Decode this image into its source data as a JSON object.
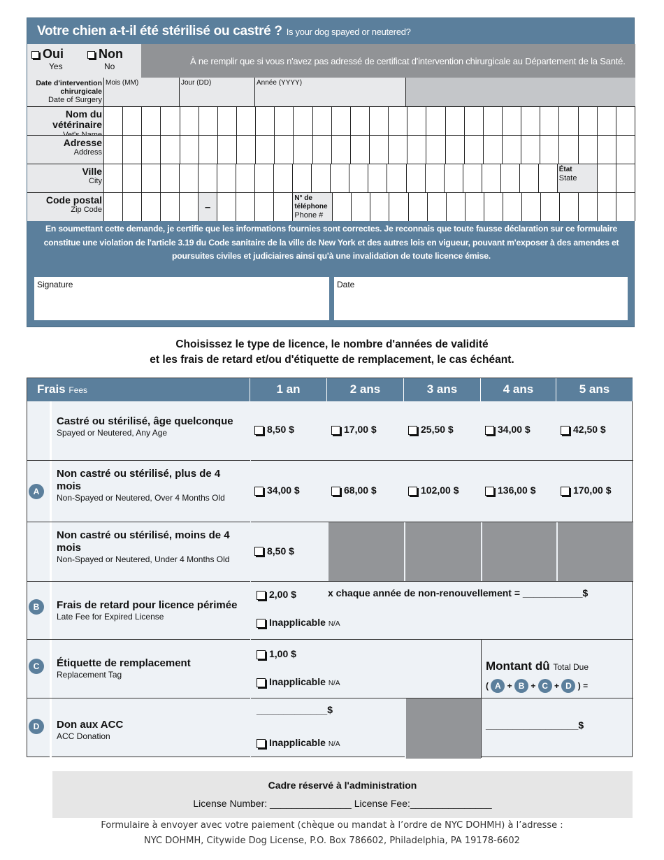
{
  "spay": {
    "title_fr": "Votre chien a-t-il été stérilisé ou castré ?",
    "title_en": "Is your dog spayed or neutered?",
    "yes_fr": "Oui",
    "yes_en": "Yes",
    "no_fr": "Non",
    "no_en": "No",
    "note": "À ne remplir que si vous n'avez pas adressé de certificat d'intervention chirurgicale au Département de la Santé.",
    "date_fr": "Date d'intervention chirurgicale",
    "date_en": "Date of Surgery",
    "month": "Mois (MM)",
    "day": "Jour (DD)",
    "year": "Année (YYYY)",
    "vet_fr": "Nom du vétérinaire",
    "vet_en": "Vet's Name",
    "addr_fr": "Adresse",
    "addr_en": "Address",
    "city_fr": "Ville",
    "city_en": "City",
    "state_fr": "État",
    "state_en": "State",
    "zip_fr": "Code postal",
    "zip_en": "Zip Code",
    "zip_dash": "–",
    "phone_fr": "N° de téléphone",
    "phone_en": "Phone #",
    "declaration": "En soumettant cette demande, je certifie que les informations fournies sont correctes. Je reconnais que toute fausse déclaration sur ce formulaire constitue une violation de l'article 3.19 du Code sanitaire de la ville de New York et des autres lois en vigueur, pouvant m'exposer à des amendes et poursuites civiles et judiciaires ainsi qu'à une invalidation de toute licence émise.",
    "signature": "Signature",
    "date": "Date"
  },
  "license_title_1": "Choisissez le type de licence, le nombre d'années de validité",
  "license_title_2": "et les frais de retard et/ou d'étiquette de remplacement, le cas échéant.",
  "fees": {
    "header_fr": "Frais",
    "header_en": "Fees",
    "years": [
      "1 an",
      "2 ans",
      "3 ans",
      "4 ans",
      "5 ans"
    ],
    "rows": [
      {
        "fr": "Castré ou stérilisé, âge quelconque",
        "en": "Spayed or Neutered, Any Age",
        "prices": [
          "8,50 $",
          "17,00 $",
          "25,50 $",
          "34,00 $",
          "42,50 $"
        ]
      },
      {
        "letter": "A",
        "fr": "Non castré ou stérilisé, plus de 4 mois",
        "en": "Non-Spayed or Neutered, Over 4 Months Old",
        "prices": [
          "34,00 $",
          "68,00 $",
          "102,00 $",
          "136,00 $",
          "170,00 $"
        ]
      },
      {
        "fr": "Non castré ou stérilisé, moins de 4 mois",
        "en": "Non-Spayed or Neutered, Under 4 Months Old",
        "prices": [
          "8,50 $"
        ]
      }
    ],
    "late": {
      "letter": "B",
      "fr": "Frais de retard pour licence périmée",
      "en": "Late Fee for Expired License",
      "price": "2,00 $",
      "mult": "x  chaque année de non-renouvellement =  ___________$"
    },
    "tag": {
      "letter": "C",
      "fr": "Étiquette de remplacement",
      "en": "Replacement Tag",
      "price": "1,00 $"
    },
    "donation": {
      "letter": "D",
      "fr": "Don aux ACC",
      "en": "ACC Donation",
      "blank": "_____________$"
    },
    "na_fr": "Inapplicable",
    "na_en": "N/A",
    "total_fr": "Montant dû",
    "total_en": "Total Due",
    "total_blank": "_________________$"
  },
  "admin": {
    "title": "Cadre réservé à l'administration",
    "license_number": "License Number: _______________",
    "license_fee": "License Fee:_______________"
  },
  "footer": {
    "line1": "Formulaire à envoyer avec votre paiement (chèque ou mandat à l’ordre de NYC DOHMH) à l’adresse :",
    "line2": "NYC DOHMH, Citywide Dog License, P.O. Box 786602, Philadelphia, PA 19178-6602"
  },
  "colors": {
    "accent": "#5b7f9c",
    "grey": "#939598",
    "light": "#eef2f6"
  }
}
